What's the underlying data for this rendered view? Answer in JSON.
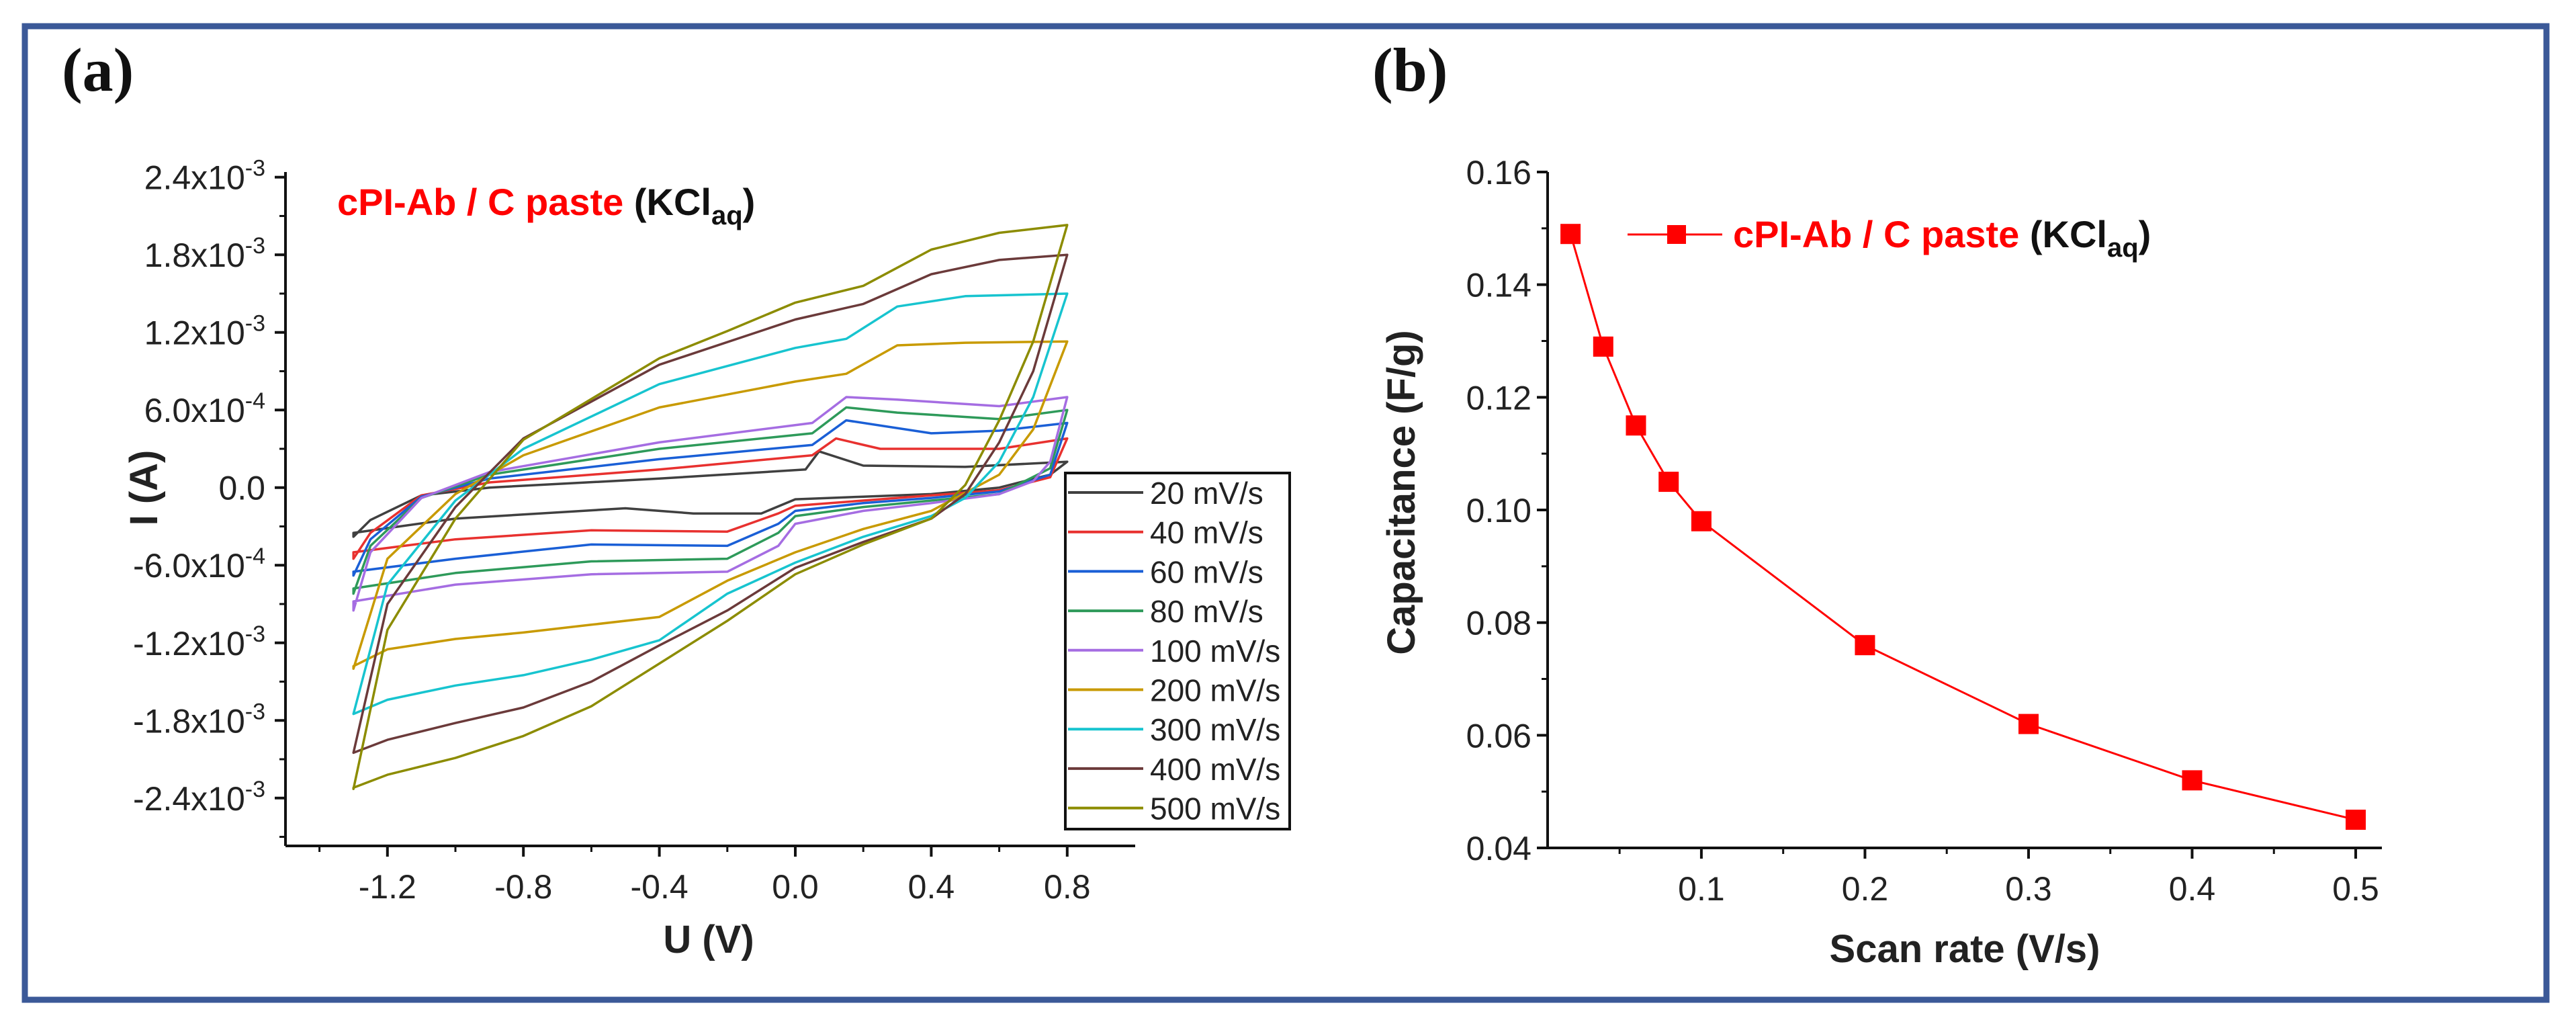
{
  "colors": {
    "frame": "#3b5998",
    "accent": "#ff0000"
  },
  "chart_data": [
    {
      "type": "line",
      "panel_label": "(a)",
      "title": {
        "red": "cPI-Ab / C paste",
        "black_open": " (KCl",
        "sub": "aq",
        "black_close": ")"
      },
      "xlabel": "U (V)",
      "ylabel": "I (A)",
      "xlim": [
        -1.5,
        1.0
      ],
      "ylim": [
        -0.00277,
        0.00244
      ],
      "xticks": [
        {
          "v": -1.2,
          "label": "-1.2"
        },
        {
          "v": -0.8,
          "label": "-0.8"
        },
        {
          "v": -0.4,
          "label": "-0.4"
        },
        {
          "v": 0.0,
          "label": "0.0"
        },
        {
          "v": 0.4,
          "label": "0.4"
        },
        {
          "v": 0.8,
          "label": "0.8"
        }
      ],
      "yticks": [
        {
          "v": 0.0024,
          "m": "2.4x10",
          "e": "-3"
        },
        {
          "v": 0.0018,
          "m": "1.8x10",
          "e": "-3"
        },
        {
          "v": 0.0012,
          "m": "1.2x10",
          "e": "-3"
        },
        {
          "v": 0.0006,
          "m": "6.0x10",
          "e": "-4"
        },
        {
          "v": 0.0,
          "m": "0.0",
          "e": ""
        },
        {
          "v": -0.0006,
          "m": "-6.0x10",
          "e": "-4"
        },
        {
          "v": -0.0012,
          "m": "-1.2x10",
          "e": "-3"
        },
        {
          "v": -0.0018,
          "m": "-1.8x10",
          "e": "-3"
        },
        {
          "v": -0.0024,
          "m": "-2.4x10",
          "e": "-3"
        }
      ],
      "legend_position": "right",
      "series": [
        {
          "name": "20 mV/s",
          "color": "#404040",
          "points": [
            [
              -1.3,
              -0.00038
            ],
            [
              -1.25,
              -0.00025
            ],
            [
              -1.1,
              -6e-05
            ],
            [
              -0.9,
              0.0
            ],
            [
              -0.4,
              7e-05
            ],
            [
              0.03,
              0.00014
            ],
            [
              0.07,
              0.00028
            ],
            [
              0.2,
              0.00017
            ],
            [
              0.5,
              0.00016
            ],
            [
              0.8,
              0.0002
            ],
            [
              0.75,
              0.0001
            ],
            [
              0.6,
              0.0
            ],
            [
              0.4,
              -5e-05
            ],
            [
              0.2,
              -7e-05
            ],
            [
              0.0,
              -9e-05
            ],
            [
              -0.1,
              -0.0002
            ],
            [
              -0.3,
              -0.0002
            ],
            [
              -0.5,
              -0.00016
            ],
            [
              -1.0,
              -0.00024
            ],
            [
              -1.3,
              -0.00035
            ]
          ]
        },
        {
          "name": "40 mV/s",
          "color": "#e8312f",
          "points": [
            [
              -1.3,
              -0.00055
            ],
            [
              -1.25,
              -0.00035
            ],
            [
              -1.1,
              -6e-05
            ],
            [
              -0.9,
              4e-05
            ],
            [
              -0.4,
              0.00014
            ],
            [
              0.05,
              0.00025
            ],
            [
              0.12,
              0.00038
            ],
            [
              0.25,
              0.0003
            ],
            [
              0.6,
              0.0003
            ],
            [
              0.8,
              0.00038
            ],
            [
              0.75,
              8e-05
            ],
            [
              0.6,
              -2e-05
            ],
            [
              0.4,
              -6e-05
            ],
            [
              0.2,
              -0.0001
            ],
            [
              0.0,
              -0.00014
            ],
            [
              -0.05,
              -0.0002
            ],
            [
              -0.2,
              -0.00034
            ],
            [
              -0.6,
              -0.00033
            ],
            [
              -1.0,
              -0.0004
            ],
            [
              -1.3,
              -0.0005
            ]
          ]
        },
        {
          "name": "60 mV/s",
          "color": "#1a5fd6",
          "points": [
            [
              -1.3,
              -0.00068
            ],
            [
              -1.25,
              -0.0004
            ],
            [
              -1.1,
              -7e-05
            ],
            [
              -0.9,
              7e-05
            ],
            [
              -0.4,
              0.00022
            ],
            [
              0.05,
              0.00033
            ],
            [
              0.15,
              0.00052
            ],
            [
              0.4,
              0.00042
            ],
            [
              0.6,
              0.00044
            ],
            [
              0.8,
              0.0005
            ],
            [
              0.75,
              0.0001
            ],
            [
              0.6,
              -3e-05
            ],
            [
              0.4,
              -8e-05
            ],
            [
              0.2,
              -0.00012
            ],
            [
              0.0,
              -0.00018
            ],
            [
              -0.05,
              -0.00028
            ],
            [
              -0.2,
              -0.00045
            ],
            [
              -0.6,
              -0.00044
            ],
            [
              -1.0,
              -0.00055
            ],
            [
              -1.3,
              -0.00065
            ]
          ]
        },
        {
          "name": "80 mV/s",
          "color": "#2e9a5a",
          "points": [
            [
              -1.3,
              -0.00082
            ],
            [
              -1.25,
              -0.00045
            ],
            [
              -1.1,
              -8e-05
            ],
            [
              -0.9,
              0.0001
            ],
            [
              -0.4,
              0.0003
            ],
            [
              0.05,
              0.00042
            ],
            [
              0.15,
              0.00062
            ],
            [
              0.3,
              0.00058
            ],
            [
              0.6,
              0.00053
            ],
            [
              0.8,
              0.0006
            ],
            [
              0.75,
              0.00015
            ],
            [
              0.6,
              -5e-05
            ],
            [
              0.4,
              -0.0001
            ],
            [
              0.2,
              -0.00015
            ],
            [
              0.0,
              -0.00022
            ],
            [
              -0.05,
              -0.00035
            ],
            [
              -0.2,
              -0.00055
            ],
            [
              -0.6,
              -0.00057
            ],
            [
              -1.0,
              -0.00066
            ],
            [
              -1.3,
              -0.00078
            ]
          ]
        },
        {
          "name": "100 mV/s",
          "color": "#a56de2",
          "points": [
            [
              -1.3,
              -0.00095
            ],
            [
              -1.25,
              -0.0005
            ],
            [
              -1.1,
              -8e-05
            ],
            [
              -0.9,
              0.00012
            ],
            [
              -0.4,
              0.00035
            ],
            [
              0.05,
              0.0005
            ],
            [
              0.15,
              0.0007
            ],
            [
              0.3,
              0.00068
            ],
            [
              0.6,
              0.00063
            ],
            [
              0.8,
              0.0007
            ],
            [
              0.75,
              0.0002
            ],
            [
              0.7,
              5e-05
            ],
            [
              0.6,
              -5e-05
            ],
            [
              0.4,
              -0.00012
            ],
            [
              0.2,
              -0.00018
            ],
            [
              0.0,
              -0.00028
            ],
            [
              -0.05,
              -0.00045
            ],
            [
              -0.2,
              -0.00065
            ],
            [
              -0.6,
              -0.00067
            ],
            [
              -1.0,
              -0.00075
            ],
            [
              -1.3,
              -0.00088
            ]
          ]
        },
        {
          "name": "200 mV/s",
          "color": "#c89a00",
          "points": [
            [
              -1.3,
              -0.0014
            ],
            [
              -1.2,
              -0.00055
            ],
            [
              -1.0,
              -5e-05
            ],
            [
              -0.8,
              0.00025
            ],
            [
              -0.4,
              0.00062
            ],
            [
              0.0,
              0.00082
            ],
            [
              0.15,
              0.00088
            ],
            [
              0.3,
              0.0011
            ],
            [
              0.5,
              0.00112
            ],
            [
              0.8,
              0.00113
            ],
            [
              0.7,
              0.00045
            ],
            [
              0.6,
              0.0001
            ],
            [
              0.4,
              -0.00018
            ],
            [
              0.2,
              -0.00032
            ],
            [
              0.0,
              -0.0005
            ],
            [
              -0.2,
              -0.00072
            ],
            [
              -0.4,
              -0.001
            ],
            [
              -0.6,
              -0.00106
            ],
            [
              -0.8,
              -0.00112
            ],
            [
              -1.0,
              -0.00117
            ],
            [
              -1.2,
              -0.00125
            ],
            [
              -1.3,
              -0.00138
            ]
          ]
        },
        {
          "name": "300 mV/s",
          "color": "#17c4cf",
          "points": [
            [
              -1.3,
              -0.00175
            ],
            [
              -1.2,
              -0.00075
            ],
            [
              -1.0,
              -0.0001
            ],
            [
              -0.8,
              0.0003
            ],
            [
              -0.4,
              0.0008
            ],
            [
              0.0,
              0.00108
            ],
            [
              0.15,
              0.00115
            ],
            [
              0.3,
              0.0014
            ],
            [
              0.5,
              0.00148
            ],
            [
              0.8,
              0.0015
            ],
            [
              0.7,
              0.0007
            ],
            [
              0.6,
              0.0002
            ],
            [
              0.5,
              -8e-05
            ],
            [
              0.4,
              -0.00022
            ],
            [
              0.2,
              -0.00038
            ],
            [
              0.0,
              -0.00058
            ],
            [
              -0.2,
              -0.00082
            ],
            [
              -0.4,
              -0.00118
            ],
            [
              -0.6,
              -0.00133
            ],
            [
              -0.8,
              -0.00145
            ],
            [
              -1.0,
              -0.00153
            ],
            [
              -1.2,
              -0.00164
            ],
            [
              -1.3,
              -0.00175
            ]
          ]
        },
        {
          "name": "400 mV/s",
          "color": "#6b3a3a",
          "points": [
            [
              -1.3,
              -0.00205
            ],
            [
              -1.2,
              -0.0009
            ],
            [
              -1.0,
              -0.00015
            ],
            [
              -0.8,
              0.00038
            ],
            [
              -0.4,
              0.00095
            ],
            [
              0.0,
              0.0013
            ],
            [
              0.2,
              0.00142
            ],
            [
              0.4,
              0.00165
            ],
            [
              0.6,
              0.00176
            ],
            [
              0.8,
              0.0018
            ],
            [
              0.7,
              0.0009
            ],
            [
              0.6,
              0.00035
            ],
            [
              0.5,
              -5e-05
            ],
            [
              0.4,
              -0.00024
            ],
            [
              0.2,
              -0.00042
            ],
            [
              0.0,
              -0.00062
            ],
            [
              -0.2,
              -0.00095
            ],
            [
              -0.4,
              -0.00122
            ],
            [
              -0.6,
              -0.0015
            ],
            [
              -0.8,
              -0.0017
            ],
            [
              -1.0,
              -0.00182
            ],
            [
              -1.2,
              -0.00195
            ],
            [
              -1.3,
              -0.00205
            ]
          ]
        },
        {
          "name": "500 mV/s",
          "color": "#8c8c00",
          "points": [
            [
              -1.3,
              -0.00233
            ],
            [
              -1.2,
              -0.0011
            ],
            [
              -1.0,
              -0.00024
            ],
            [
              -0.8,
              0.00037
            ],
            [
              -0.4,
              0.001
            ],
            [
              -0.2,
              0.00121
            ],
            [
              0.0,
              0.00143
            ],
            [
              0.2,
              0.00156
            ],
            [
              0.4,
              0.00184
            ],
            [
              0.6,
              0.00197
            ],
            [
              0.8,
              0.00203
            ],
            [
              0.7,
              0.00113
            ],
            [
              0.6,
              0.00052
            ],
            [
              0.5,
              2e-05
            ],
            [
              0.4,
              -0.00024
            ],
            [
              0.2,
              -0.00044
            ],
            [
              0.0,
              -0.00067
            ],
            [
              -0.2,
              -0.00103
            ],
            [
              -0.4,
              -0.00136
            ],
            [
              -0.6,
              -0.00169
            ],
            [
              -0.8,
              -0.00192
            ],
            [
              -1.0,
              -0.00209
            ],
            [
              -1.2,
              -0.00222
            ],
            [
              -1.3,
              -0.00232
            ]
          ]
        }
      ]
    },
    {
      "type": "line",
      "panel_label": "(b)",
      "xlabel": "Scan rate (V/s)",
      "ylabel": "Capacitance (F/g)",
      "xlim": [
        0.006,
        0.516
      ],
      "ylim": [
        0.04,
        0.16
      ],
      "xticks": [
        {
          "v": 0.1,
          "label": "0.1"
        },
        {
          "v": 0.2,
          "label": "0.2"
        },
        {
          "v": 0.3,
          "label": "0.3"
        },
        {
          "v": 0.4,
          "label": "0.4"
        },
        {
          "v": 0.5,
          "label": "0.5"
        }
      ],
      "yticks": [
        {
          "v": 0.16,
          "label": "0.16"
        },
        {
          "v": 0.14,
          "label": "0.14"
        },
        {
          "v": 0.12,
          "label": "0.12"
        },
        {
          "v": 0.1,
          "label": "0.10"
        },
        {
          "v": 0.08,
          "label": "0.08"
        },
        {
          "v": 0.06,
          "label": "0.06"
        },
        {
          "v": 0.04,
          "label": "0.04"
        }
      ],
      "legend_position": "top",
      "legend": {
        "red": "cPI-Ab / C paste",
        "black_open": " (KCl",
        "sub": "aq",
        "black_close": ")"
      },
      "series": [
        {
          "name": "cPI-Ab / C paste (KClaq)",
          "color": "#ff0000",
          "x": [
            0.02,
            0.04,
            0.06,
            0.08,
            0.1,
            0.2,
            0.3,
            0.4,
            0.5
          ],
          "y": [
            0.149,
            0.129,
            0.115,
            0.105,
            0.098,
            0.076,
            0.062,
            0.052,
            0.045
          ]
        }
      ]
    }
  ]
}
